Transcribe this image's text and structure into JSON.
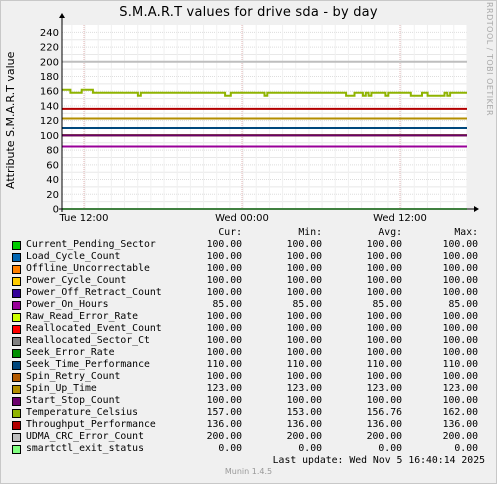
{
  "title": "S.M.A.R.T values for drive sda - by day",
  "side_text": "RRDTOOL / TOBI OETIKER",
  "footer": {
    "version": "Munin 1.4.5",
    "last_update": "Last update:  Wed Nov  5 16:40:14 2025"
  },
  "legend_headers": {
    "cur": "Cur:",
    "min": "Min:",
    "avg": "Avg:",
    "max": "Max:"
  },
  "chart_data": {
    "type": "line",
    "title": "S.M.A.R.T values for drive sda - by day",
    "ylabel": "Attribute S.M.A.R.T value",
    "xlabel": "",
    "ylim": [
      0,
      250
    ],
    "yticks": [
      0,
      20,
      40,
      60,
      80,
      100,
      120,
      140,
      160,
      180,
      200,
      220,
      240
    ],
    "xtick_labels": [
      "Tue 12:00",
      "Wed 00:00",
      "Wed 12:00"
    ],
    "grid": true,
    "legend_placement": "bottom",
    "series": [
      {
        "name": "Current_Pending_Sector",
        "color": "#00cc00",
        "cur": "100.00",
        "min": "100.00",
        "avg": "100.00",
        "max": "100.00",
        "value": 100
      },
      {
        "name": "Load_Cycle_Count",
        "color": "#0066b3",
        "cur": "100.00",
        "min": "100.00",
        "avg": "100.00",
        "max": "100.00",
        "value": 100
      },
      {
        "name": "Offline_Uncorrectable",
        "color": "#ff8000",
        "cur": "100.00",
        "min": "100.00",
        "avg": "100.00",
        "max": "100.00",
        "value": 100
      },
      {
        "name": "Power_Cycle_Count",
        "color": "#ffcc00",
        "cur": "100.00",
        "min": "100.00",
        "avg": "100.00",
        "max": "100.00",
        "value": 100
      },
      {
        "name": "Power_Off_Retract_Count",
        "color": "#330099",
        "cur": "100.00",
        "min": "100.00",
        "avg": "100.00",
        "max": "100.00",
        "value": 100
      },
      {
        "name": "Power_On_Hours",
        "color": "#990099",
        "cur": "85.00",
        "min": "85.00",
        "avg": "85.00",
        "max": "85.00",
        "value": 85
      },
      {
        "name": "Raw_Read_Error_Rate",
        "color": "#ccff00",
        "cur": "100.00",
        "min": "100.00",
        "avg": "100.00",
        "max": "100.00",
        "value": 100
      },
      {
        "name": "Reallocated_Event_Count",
        "color": "#ff0000",
        "cur": "100.00",
        "min": "100.00",
        "avg": "100.00",
        "max": "100.00",
        "value": 100
      },
      {
        "name": "Reallocated_Sector_Ct",
        "color": "#808080",
        "cur": "100.00",
        "min": "100.00",
        "avg": "100.00",
        "max": "100.00",
        "value": 100
      },
      {
        "name": "Seek_Error_Rate",
        "color": "#008f00",
        "cur": "100.00",
        "min": "100.00",
        "avg": "100.00",
        "max": "100.00",
        "value": 100
      },
      {
        "name": "Seek_Time_Performance",
        "color": "#00487d",
        "cur": "110.00",
        "min": "110.00",
        "avg": "110.00",
        "max": "110.00",
        "value": 110
      },
      {
        "name": "Spin_Retry_Count",
        "color": "#b35a00",
        "cur": "100.00",
        "min": "100.00",
        "avg": "100.00",
        "max": "100.00",
        "value": 100
      },
      {
        "name": "Spin_Up_Time",
        "color": "#b38f00",
        "cur": "123.00",
        "min": "123.00",
        "avg": "123.00",
        "max": "123.00",
        "value": 123
      },
      {
        "name": "Start_Stop_Count",
        "color": "#6b006b",
        "cur": "100.00",
        "min": "100.00",
        "avg": "100.00",
        "max": "100.00",
        "value": 100
      },
      {
        "name": "Temperature_Celsius",
        "color": "#8fb300",
        "cur": "157.00",
        "min": "153.00",
        "avg": "156.76",
        "max": "162.00",
        "value": 157
      },
      {
        "name": "Throughput_Performance",
        "color": "#b30000",
        "cur": "136.00",
        "min": "136.00",
        "avg": "136.00",
        "max": "136.00",
        "value": 136
      },
      {
        "name": "UDMA_CRC_Error_Count",
        "color": "#bebebe",
        "cur": "200.00",
        "min": "200.00",
        "avg": "200.00",
        "max": "200.00",
        "value": 200
      },
      {
        "name": "smartctl_exit_status",
        "color": "#80ff80",
        "cur": "0.00",
        "min": "0.00",
        "avg": "0.00",
        "max": "0.00",
        "value": 0
      }
    ],
    "temperature_trace": [
      162,
      162,
      162,
      158,
      158,
      158,
      158,
      162,
      162,
      162,
      162,
      158,
      158,
      158,
      158,
      158,
      158,
      158,
      158,
      158,
      158,
      158,
      158,
      158,
      158,
      158,
      158,
      154,
      158,
      158,
      158,
      158,
      158,
      158,
      158,
      158,
      158,
      158,
      158,
      158,
      158,
      158,
      158,
      158,
      158,
      158,
      158,
      158,
      158,
      158,
      158,
      158,
      158,
      158,
      158,
      158,
      158,
      158,
      154,
      154,
      158,
      158,
      158,
      158,
      158,
      158,
      158,
      158,
      158,
      158,
      158,
      158,
      154,
      158,
      158,
      158,
      158,
      158,
      158,
      158,
      158,
      158,
      158,
      158,
      158,
      158,
      158,
      158,
      158,
      158,
      158,
      158,
      158,
      158,
      158,
      158,
      158,
      158,
      158,
      158,
      158,
      154,
      154,
      154,
      158,
      158,
      158,
      154,
      158,
      154,
      158,
      158,
      158,
      158,
      158,
      154,
      158,
      158,
      158,
      158,
      158,
      158,
      158,
      158,
      154,
      154,
      154,
      154,
      158,
      158,
      154,
      154,
      154,
      154,
      154,
      154,
      158,
      154,
      158,
      158,
      158,
      158,
      158,
      158,
      158
    ]
  }
}
